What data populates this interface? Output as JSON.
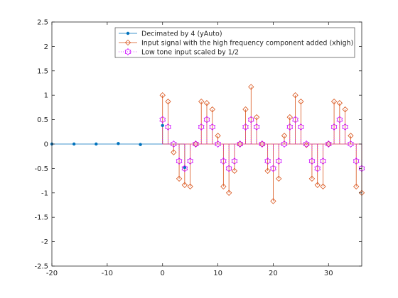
{
  "chart_data": {
    "type": "scatter",
    "title": "",
    "xlabel": "",
    "ylabel": "",
    "xlim": [
      -20,
      36
    ],
    "ylim": [
      -2.5,
      2.5
    ],
    "xticks": [
      -20,
      -10,
      0,
      10,
      20,
      30
    ],
    "xtick_labels": [
      "-20",
      "-10",
      "0",
      "10",
      "20",
      "30"
    ],
    "yticks": [
      -2.5,
      -2,
      -1.5,
      -1,
      -0.5,
      0,
      0.5,
      1,
      1.5,
      2,
      2.5
    ],
    "ytick_labels": [
      "-2.5",
      "-2",
      "-1.5",
      "-1",
      "-0.5",
      "0",
      "0.5",
      "1",
      "1.5",
      "2",
      "2.5"
    ],
    "grid": false,
    "legend_position": "top-right",
    "series": [
      {
        "name": "Decimated by 4 (yAuto)",
        "style": "stem",
        "marker": "dot",
        "color": "#0072bd",
        "x": [
          -20,
          -16,
          -12,
          -8,
          -4,
          0,
          4
        ],
        "y": [
          0.0,
          0.0,
          0.0,
          0.01,
          -0.01,
          0.38,
          -0.48
        ]
      },
      {
        "name": "Input signal with the high frequency component added (xhigh)",
        "style": "stem",
        "marker": "diamond",
        "color": "#d95319",
        "x": [
          0,
          1,
          2,
          3,
          4,
          5,
          6,
          7,
          8,
          9,
          10,
          11,
          12,
          13,
          14,
          15,
          16,
          17,
          18,
          19,
          20,
          21,
          22,
          23,
          24,
          25,
          26,
          27,
          28,
          29,
          30,
          31,
          32,
          33,
          34,
          35,
          36
        ],
        "y": [
          1.0,
          0.87,
          -0.17,
          -0.71,
          -0.84,
          -0.87,
          0.0,
          0.87,
          0.84,
          0.71,
          0.17,
          -0.87,
          -1.0,
          -0.55,
          0.0,
          0.71,
          1.17,
          0.55,
          0.0,
          -0.55,
          -1.17,
          -0.71,
          0.17,
          0.55,
          1.0,
          0.87,
          -0.02,
          -0.71,
          -0.84,
          -0.87,
          0.0,
          0.87,
          0.84,
          0.71,
          0.17,
          -0.87,
          -1.0
        ]
      },
      {
        "name": "Low tone input scaled by 1/2",
        "style": "stem",
        "line": "dotted",
        "marker": "hexagram",
        "color": "#cc00ff",
        "x": [
          0,
          1,
          2,
          3,
          4,
          5,
          6,
          7,
          8,
          9,
          10,
          11,
          12,
          13,
          14,
          15,
          16,
          17,
          18,
          19,
          20,
          21,
          22,
          23,
          24,
          25,
          26,
          27,
          28,
          29,
          30,
          31,
          32,
          33,
          34,
          35,
          36
        ],
        "y": [
          0.5,
          0.35,
          0.0,
          -0.35,
          -0.5,
          -0.35,
          0.0,
          0.35,
          0.5,
          0.35,
          0.0,
          -0.35,
          -0.5,
          -0.35,
          0.0,
          0.35,
          0.5,
          0.35,
          0.0,
          -0.35,
          -0.5,
          -0.35,
          0.0,
          0.35,
          0.5,
          0.35,
          0.0,
          -0.35,
          -0.5,
          -0.35,
          0.0,
          0.35,
          0.5,
          0.35,
          0.0,
          -0.35,
          -0.5
        ]
      }
    ]
  }
}
